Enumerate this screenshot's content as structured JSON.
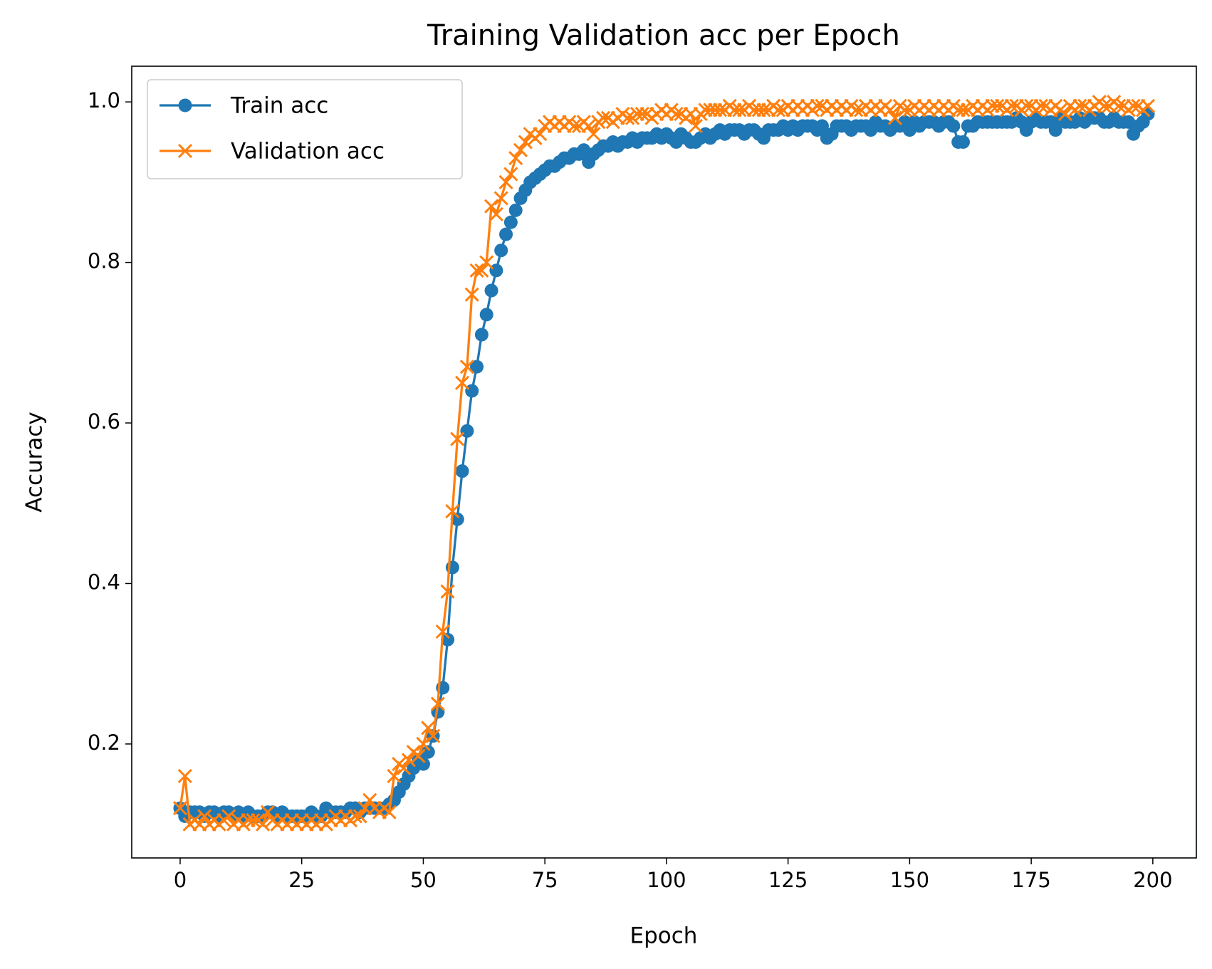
{
  "chart_data": {
    "type": "line",
    "title": "Training Validation acc per Epoch",
    "x_label": "Epoch",
    "y_label": "Accuracy",
    "x": [
      0,
      1,
      2,
      3,
      4,
      5,
      6,
      7,
      8,
      9,
      10,
      11,
      12,
      13,
      14,
      15,
      16,
      17,
      18,
      19,
      20,
      21,
      22,
      23,
      24,
      25,
      26,
      27,
      28,
      29,
      30,
      31,
      32,
      33,
      34,
      35,
      36,
      37,
      38,
      39,
      40,
      41,
      42,
      43,
      44,
      45,
      46,
      47,
      48,
      49,
      50,
      51,
      52,
      53,
      54,
      55,
      56,
      57,
      58,
      59,
      60,
      61,
      62,
      63,
      64,
      65,
      66,
      67,
      68,
      69,
      70,
      71,
      72,
      73,
      74,
      75,
      76,
      77,
      78,
      79,
      80,
      81,
      82,
      83,
      84,
      85,
      86,
      87,
      88,
      89,
      90,
      91,
      92,
      93,
      94,
      95,
      96,
      97,
      98,
      99,
      100,
      101,
      102,
      103,
      104,
      105,
      106,
      107,
      108,
      109,
      110,
      111,
      112,
      113,
      114,
      115,
      116,
      117,
      118,
      119,
      120,
      121,
      122,
      123,
      124,
      125,
      126,
      127,
      128,
      129,
      130,
      131,
      132,
      133,
      134,
      135,
      136,
      137,
      138,
      139,
      140,
      141,
      142,
      143,
      144,
      145,
      146,
      147,
      148,
      149,
      150,
      151,
      152,
      153,
      154,
      155,
      156,
      157,
      158,
      159,
      160,
      161,
      162,
      163,
      164,
      165,
      166,
      167,
      168,
      169,
      170,
      171,
      172,
      173,
      174,
      175,
      176,
      177,
      178,
      179,
      180,
      181,
      182,
      183,
      184,
      185,
      186,
      187,
      188,
      189,
      190,
      191,
      192,
      193,
      194,
      195,
      196,
      197,
      198,
      199
    ],
    "series": [
      {
        "name": "Train acc",
        "color": "#1f77b4",
        "marker": "o",
        "values": [
          0.12,
          0.11,
          0.115,
          0.115,
          0.115,
          0.11,
          0.115,
          0.115,
          0.11,
          0.115,
          0.115,
          0.11,
          0.115,
          0.11,
          0.115,
          0.11,
          0.11,
          0.11,
          0.115,
          0.115,
          0.11,
          0.115,
          0.11,
          0.11,
          0.11,
          0.11,
          0.11,
          0.115,
          0.11,
          0.11,
          0.12,
          0.115,
          0.115,
          0.115,
          0.115,
          0.12,
          0.12,
          0.115,
          0.12,
          0.12,
          0.12,
          0.12,
          0.12,
          0.125,
          0.13,
          0.14,
          0.15,
          0.16,
          0.17,
          0.18,
          0.175,
          0.19,
          0.21,
          0.24,
          0.27,
          0.33,
          0.42,
          0.48,
          0.54,
          0.59,
          0.64,
          0.67,
          0.71,
          0.735,
          0.765,
          0.79,
          0.815,
          0.835,
          0.85,
          0.865,
          0.88,
          0.89,
          0.9,
          0.905,
          0.91,
          0.915,
          0.92,
          0.92,
          0.925,
          0.93,
          0.93,
          0.935,
          0.935,
          0.94,
          0.925,
          0.935,
          0.94,
          0.945,
          0.945,
          0.95,
          0.945,
          0.95,
          0.95,
          0.955,
          0.95,
          0.955,
          0.955,
          0.955,
          0.96,
          0.955,
          0.96,
          0.955,
          0.95,
          0.96,
          0.955,
          0.95,
          0.95,
          0.955,
          0.96,
          0.955,
          0.96,
          0.965,
          0.96,
          0.965,
          0.965,
          0.965,
          0.96,
          0.965,
          0.965,
          0.96,
          0.955,
          0.965,
          0.965,
          0.965,
          0.97,
          0.965,
          0.97,
          0.965,
          0.97,
          0.97,
          0.97,
          0.965,
          0.97,
          0.955,
          0.96,
          0.97,
          0.97,
          0.97,
          0.965,
          0.97,
          0.97,
          0.97,
          0.965,
          0.975,
          0.97,
          0.97,
          0.965,
          0.97,
          0.97,
          0.975,
          0.965,
          0.975,
          0.97,
          0.975,
          0.975,
          0.975,
          0.97,
          0.975,
          0.975,
          0.97,
          0.95,
          0.95,
          0.97,
          0.97,
          0.975,
          0.975,
          0.975,
          0.975,
          0.975,
          0.975,
          0.975,
          0.975,
          0.98,
          0.975,
          0.965,
          0.975,
          0.98,
          0.975,
          0.975,
          0.975,
          0.965,
          0.98,
          0.975,
          0.975,
          0.975,
          0.98,
          0.975,
          0.98,
          0.98,
          0.98,
          0.975,
          0.975,
          0.98,
          0.975,
          0.975,
          0.975,
          0.96,
          0.97,
          0.975,
          0.985
        ]
      },
      {
        "name": "Validation acc",
        "color": "#ff7f0e",
        "marker": "x",
        "values": [
          0.12,
          0.16,
          0.1,
          0.105,
          0.1,
          0.11,
          0.1,
          0.105,
          0.1,
          0.105,
          0.11,
          0.1,
          0.105,
          0.1,
          0.105,
          0.105,
          0.105,
          0.1,
          0.115,
          0.105,
          0.1,
          0.105,
          0.1,
          0.105,
          0.1,
          0.105,
          0.1,
          0.105,
          0.1,
          0.105,
          0.1,
          0.105,
          0.11,
          0.105,
          0.11,
          0.105,
          0.11,
          0.11,
          0.12,
          0.13,
          0.12,
          0.115,
          0.12,
          0.115,
          0.16,
          0.175,
          0.17,
          0.18,
          0.19,
          0.185,
          0.2,
          0.22,
          0.21,
          0.25,
          0.34,
          0.39,
          0.49,
          0.58,
          0.65,
          0.67,
          0.76,
          0.79,
          0.79,
          0.8,
          0.87,
          0.86,
          0.88,
          0.9,
          0.91,
          0.93,
          0.94,
          0.95,
          0.96,
          0.955,
          0.96,
          0.97,
          0.975,
          0.97,
          0.975,
          0.97,
          0.975,
          0.97,
          0.97,
          0.975,
          0.97,
          0.96,
          0.975,
          0.98,
          0.98,
          0.975,
          0.98,
          0.985,
          0.98,
          0.98,
          0.985,
          0.985,
          0.985,
          0.98,
          0.985,
          0.99,
          0.985,
          0.99,
          0.985,
          0.985,
          0.98,
          0.985,
          0.97,
          0.985,
          0.99,
          0.99,
          0.99,
          0.99,
          0.99,
          0.995,
          0.99,
          0.99,
          0.99,
          0.995,
          0.99,
          0.99,
          0.99,
          0.99,
          0.995,
          0.99,
          0.99,
          0.995,
          0.99,
          0.995,
          0.99,
          0.995,
          0.99,
          0.995,
          0.995,
          0.99,
          0.995,
          0.99,
          0.995,
          0.99,
          0.995,
          0.99,
          0.99,
          0.995,
          0.99,
          0.995,
          0.99,
          0.995,
          0.99,
          0.98,
          0.995,
          0.99,
          0.99,
          0.995,
          0.99,
          0.995,
          0.99,
          0.995,
          0.99,
          0.995,
          0.99,
          0.995,
          0.99,
          0.99,
          0.99,
          0.995,
          0.99,
          0.995,
          0.99,
          0.995,
          0.995,
          0.995,
          0.99,
          0.995,
          0.995,
          0.99,
          0.995,
          0.995,
          0.99,
          0.995,
          0.995,
          0.99,
          0.995,
          0.99,
          0.985,
          0.995,
          0.99,
          0.995,
          0.995,
          0.99,
          0.995,
          1.0,
          0.995,
          0.995,
          1.0,
          0.995,
          0.995,
          0.99,
          0.995,
          0.995,
          0.99,
          0.995
        ]
      }
    ],
    "xlim": [
      -9.95,
      208.95
    ],
    "ylim": [
      0.058,
      1.0445
    ],
    "xticks": [
      0,
      25,
      50,
      75,
      100,
      125,
      150,
      175,
      200
    ],
    "yticks": [
      0.2,
      0.4,
      0.6,
      0.8,
      {
        "value": 1,
        "label": "1.0"
      }
    ],
    "legend": "upper left"
  }
}
